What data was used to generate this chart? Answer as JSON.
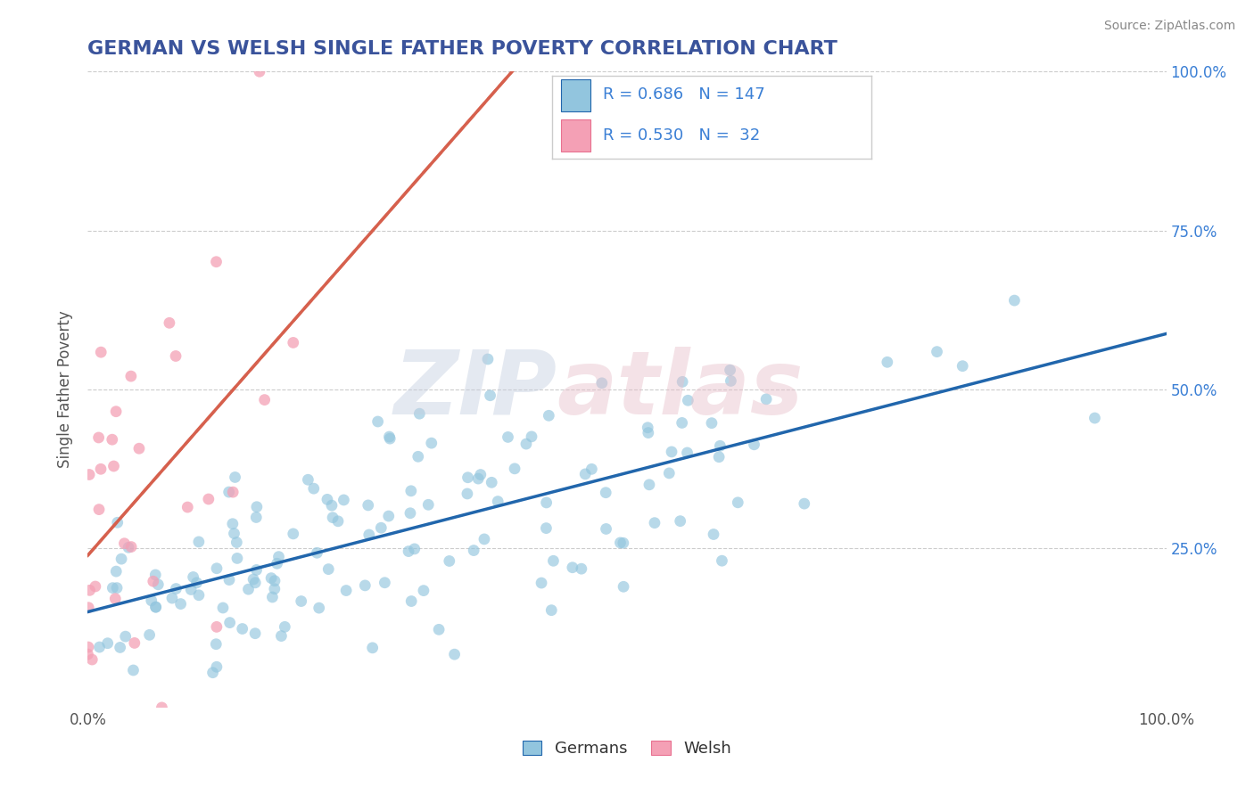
{
  "title": "GERMAN VS WELSH SINGLE FATHER POVERTY CORRELATION CHART",
  "source": "Source: ZipAtlas.com",
  "ylabel": "Single Father Poverty",
  "german_R": 0.686,
  "german_N": 147,
  "welsh_R": 0.53,
  "welsh_N": 32,
  "german_color": "#92c5de",
  "welsh_color": "#f4a0b5",
  "german_line_color": "#2166ac",
  "welsh_line_color": "#d6604d",
  "background_color": "#ffffff",
  "grid_color": "#cccccc",
  "title_color": "#3a539b",
  "source_color": "#888888",
  "ytick_color": "#3a7fd5",
  "tick_label_color": "#555555",
  "legend_border_color": "#cccccc",
  "legend_text_color": "#3a7fd5",
  "bottom_legend_text_color": "#333333",
  "watermark_zip_color": "#c5cfe0",
  "watermark_atlas_color": "#e8c0ca"
}
